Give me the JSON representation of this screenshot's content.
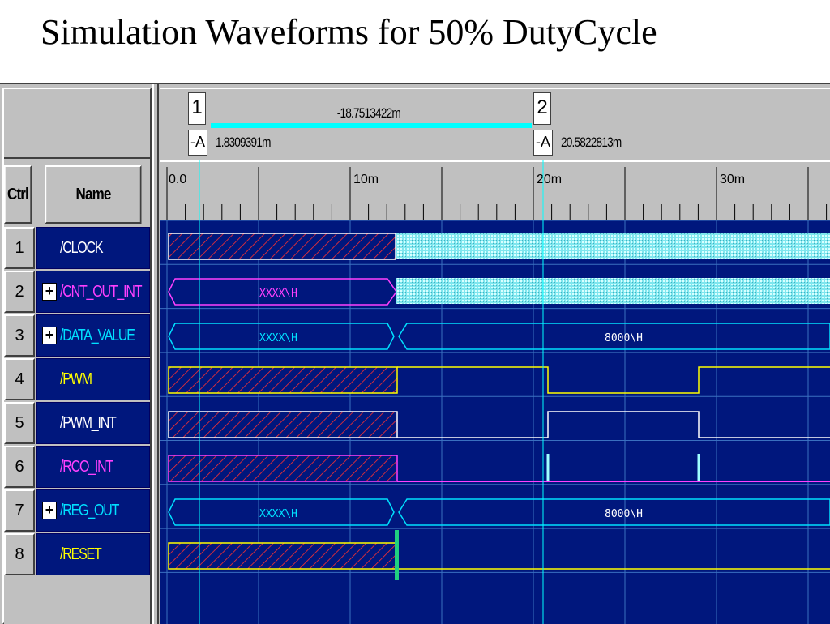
{
  "title": "Simulation Waveforms for 50% DutyCycle",
  "headers": {
    "ctrl": "Ctrl",
    "name": "Name"
  },
  "cursors": {
    "cursor1": {
      "number": "1",
      "time": "1.8309391m",
      "lock": "-A"
    },
    "cursor2": {
      "number": "2",
      "time": "20.5822813m",
      "lock": "-A"
    },
    "delta": "-18.7513422m"
  },
  "ruler": {
    "labels": [
      "0.0",
      "10m",
      "20m",
      "30m"
    ]
  },
  "signals": [
    {
      "ctrl": "1",
      "name": "/CLOCK",
      "expandable": false,
      "color": "#ffffff"
    },
    {
      "ctrl": "2",
      "name": "/CNT_OUT_INT",
      "expandable": true,
      "color": "#ff40ff"
    },
    {
      "ctrl": "3",
      "name": "/DATA_VALUE",
      "expandable": true,
      "color": "#00e0ff"
    },
    {
      "ctrl": "4",
      "name": "/PWM",
      "expandable": false,
      "color": "#ffff00"
    },
    {
      "ctrl": "5",
      "name": "/PWM_INT",
      "expandable": false,
      "color": "#ffffff"
    },
    {
      "ctrl": "6",
      "name": "/RCO_INT",
      "expandable": false,
      "color": "#ff40ff"
    },
    {
      "ctrl": "7",
      "name": "/REG_OUT",
      "expandable": true,
      "color": "#00e0ff"
    },
    {
      "ctrl": "8",
      "name": "/RESET",
      "expandable": false,
      "color": "#ffff00"
    }
  ],
  "bus_values": {
    "cnt_out_int": "XXXX\\H",
    "data_value_a": "XXXX\\H",
    "data_value_b": "8000\\H",
    "reg_out_a": "XXXX\\H",
    "reg_out_b": "8000\\H"
  },
  "colors": {
    "wave_bg": "#00177d",
    "grid": "#3a70c0",
    "unknown_hatch": "#ff3030",
    "cursor_line": "#00ffff",
    "clock_fill": "#a0ffff"
  }
}
